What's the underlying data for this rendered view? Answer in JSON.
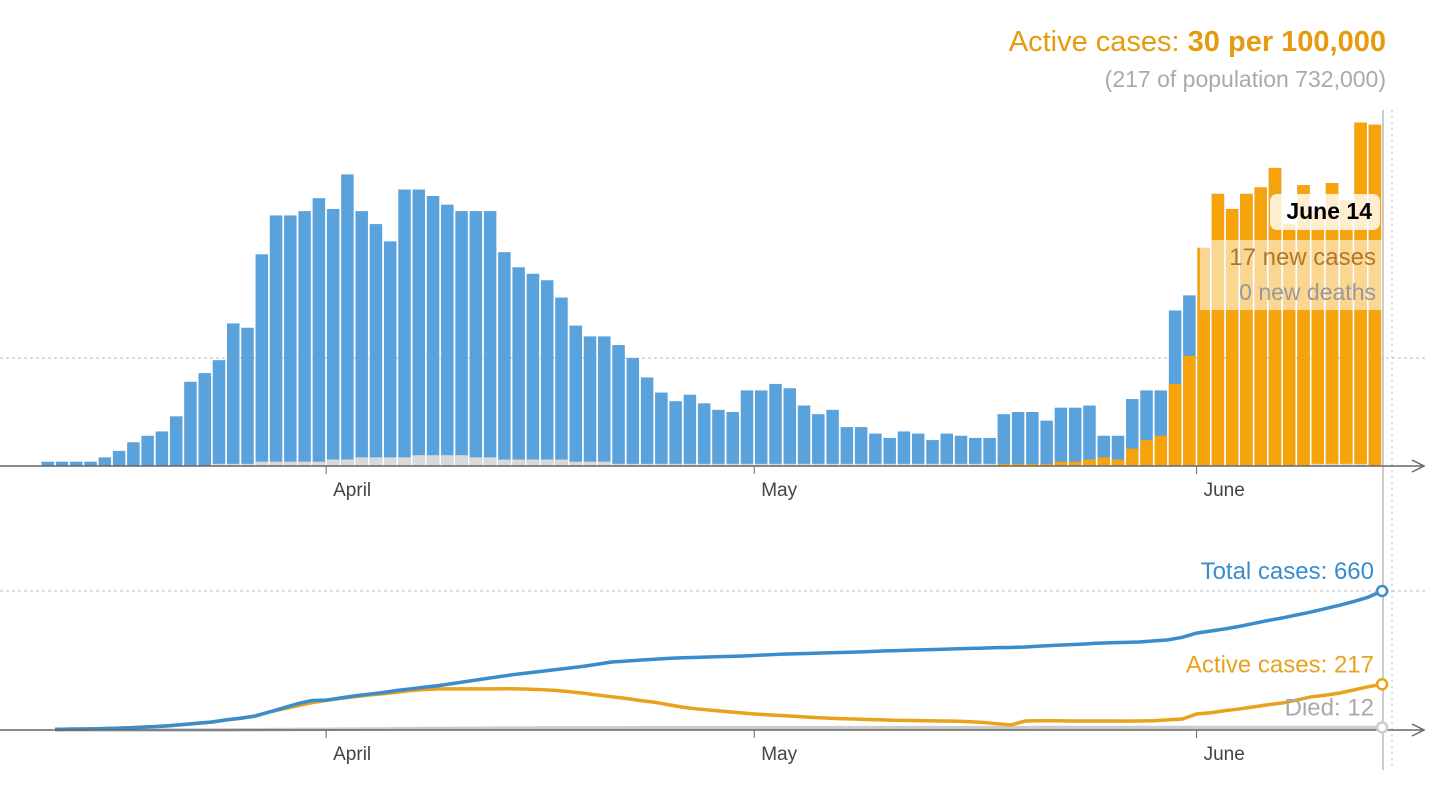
{
  "chart_data": [
    {
      "type": "bar",
      "title": "Active cases:",
      "title_value": "30 per 100,000",
      "subtitle": "(217 of population 732,000)",
      "tooltip": {
        "date": "June 14",
        "cases": "17 new cases",
        "deaths": "0 new deaths"
      },
      "categories": [
        null,
        null,
        null,
        null,
        null,
        null,
        null,
        null,
        null,
        null,
        null,
        null,
        null,
        null,
        null,
        null,
        null,
        null,
        null,
        "April",
        null,
        null,
        null,
        null,
        null,
        null,
        null,
        null,
        null,
        null,
        null,
        null,
        null,
        null,
        null,
        null,
        null,
        null,
        null,
        null,
        null,
        null,
        null,
        null,
        null,
        null,
        null,
        null,
        null,
        "May",
        null,
        null,
        null,
        null,
        null,
        null,
        null,
        null,
        null,
        null,
        null,
        null,
        null,
        null,
        null,
        null,
        null,
        null,
        null,
        null,
        null,
        null,
        null,
        null,
        null,
        null,
        null,
        null,
        null,
        null,
        "June",
        null,
        null,
        null,
        null,
        null,
        null,
        null,
        null,
        null,
        null,
        null,
        null,
        null
      ],
      "series": [
        {
          "name": "new cases",
          "color": "#5aa2dc",
          "values": [
            0.2,
            0.2,
            0.2,
            0.2,
            0.4,
            0.7,
            1.1,
            1.4,
            1.6,
            2.3,
            3.9,
            4.3,
            4.9,
            6.6,
            6.4,
            9.8,
            11.6,
            11.6,
            11.8,
            12.4,
            11.9,
            13.5,
            11.8,
            11.2,
            10.4,
            12.8,
            12.8,
            12.5,
            12.1,
            11.8,
            11.8,
            11.8,
            9.9,
            9.2,
            8.9,
            8.6,
            7.8,
            6.5,
            6.0,
            6.0,
            5.6,
            5.0,
            4.1,
            3.4,
            3.0,
            3.3,
            2.9,
            2.6,
            2.5,
            3.5,
            3.5,
            3.8,
            3.6,
            2.8,
            2.4,
            2.6,
            1.8,
            1.8,
            1.5,
            1.3,
            1.6,
            1.5,
            1.2,
            1.5,
            1.4,
            1.3,
            1.3,
            2.4,
            2.5,
            2.5,
            2.1,
            2.7,
            2.7,
            2.8,
            1.4,
            1.4,
            3.1,
            3.5,
            3.5,
            7.2,
            7.9,
            10.1,
            12.6,
            11.9,
            12.6,
            12.9,
            13.8,
            11.2,
            13.0,
            11.8,
            13.1,
            12.3,
            15.9,
            15.8
          ]
        },
        {
          "name": "active",
          "color": "#f7a40c",
          "values": [
            0,
            0,
            0,
            0,
            0,
            0,
            0,
            0,
            0,
            0,
            0,
            0,
            0,
            0,
            0,
            0,
            0,
            0,
            0,
            0,
            0,
            0,
            0,
            0,
            0,
            0,
            0,
            0,
            0,
            0,
            0,
            0,
            0,
            0,
            0,
            0,
            0,
            0,
            0,
            0,
            0,
            0,
            0,
            0,
            0,
            0,
            0,
            0,
            0,
            0,
            0,
            0,
            0,
            0,
            0,
            0,
            0,
            0,
            0,
            0,
            0,
            0,
            0,
            0,
            0,
            0,
            0,
            0.1,
            0.1,
            0.1,
            0.1,
            0.2,
            0.2,
            0.3,
            0.4,
            0.3,
            0.8,
            1.2,
            1.4,
            3.8,
            5.1,
            10.1,
            12.6,
            11.9,
            12.6,
            12.9,
            13.8,
            11.2,
            13.0,
            11.8,
            13.1,
            12.3,
            15.9,
            15.8
          ]
        },
        {
          "name": "deaths",
          "color": "#d9d9d9",
          "values": [
            0,
            0,
            0,
            0,
            0,
            0,
            0,
            0,
            0,
            0,
            0,
            0,
            0.1,
            0.1,
            0.1,
            0.2,
            0.2,
            0.2,
            0.2,
            0.2,
            0.3,
            0.3,
            0.4,
            0.4,
            0.4,
            0.4,
            0.5,
            0.5,
            0.5,
            0.5,
            0.4,
            0.4,
            0.3,
            0.3,
            0.3,
            0.3,
            0.3,
            0.2,
            0.2,
            0.2,
            0.1,
            0.1,
            0.1,
            0.1,
            0.1,
            0.1,
            0.1,
            0.1,
            0.1,
            0.1,
            0.1,
            0.1,
            0.1,
            0.1,
            0.1,
            0.1,
            0.1,
            0.1,
            0.1,
            0.1,
            0.1,
            0.1,
            0.1,
            0.1,
            0.1,
            0.1,
            0.1,
            0,
            0,
            0,
            0,
            0,
            0,
            0,
            0,
            0,
            0,
            0,
            0,
            0,
            0,
            0,
            0,
            0,
            0,
            0,
            0,
            0,
            0,
            0.1,
            0.1,
            0.1,
            0.1,
            0
          ]
        }
      ],
      "ylim": [
        0,
        16.5
      ],
      "yticks": [
        5
      ],
      "grid": true
    },
    {
      "type": "line",
      "categories": [
        null,
        null,
        null,
        null,
        null,
        null,
        null,
        null,
        null,
        null,
        null,
        null,
        null,
        null,
        null,
        null,
        null,
        null,
        null,
        "April",
        null,
        null,
        null,
        null,
        null,
        null,
        null,
        null,
        null,
        null,
        null,
        null,
        null,
        null,
        null,
        null,
        null,
        null,
        null,
        null,
        null,
        null,
        null,
        null,
        null,
        null,
        null,
        null,
        null,
        "May",
        null,
        null,
        null,
        null,
        null,
        null,
        null,
        null,
        null,
        null,
        null,
        null,
        null,
        null,
        null,
        null,
        null,
        null,
        null,
        null,
        null,
        null,
        null,
        null,
        null,
        null,
        null,
        null,
        null,
        null,
        "June",
        null,
        null,
        null,
        null,
        null,
        null,
        null,
        null,
        null,
        null,
        null,
        null,
        null
      ],
      "series": [
        {
          "name": "Total cases",
          "label": "Total cases: 660",
          "color": "#3a8dcc",
          "values": [
            3,
            4,
            5,
            6,
            8,
            10,
            13,
            16,
            20,
            26,
            32,
            38,
            48,
            56,
            66,
            85,
            105,
            125,
            140,
            142,
            152,
            162,
            170,
            178,
            188,
            196,
            204,
            212,
            222,
            232,
            242,
            252,
            262,
            270,
            278,
            286,
            294,
            302,
            312,
            323,
            327,
            332,
            336,
            340,
            343,
            345,
            347,
            349,
            351,
            354,
            357,
            360,
            362,
            364,
            366,
            368,
            370,
            372,
            375,
            377,
            379,
            381,
            383,
            385,
            387,
            389,
            391,
            392,
            394,
            398,
            402,
            405,
            408,
            412,
            414,
            416,
            418,
            423,
            428,
            440,
            460,
            470,
            480,
            492,
            506,
            520,
            532,
            546,
            560,
            576,
            592,
            610,
            630,
            660
          ]
        },
        {
          "name": "Active cases",
          "label": "Active cases: 217",
          "color": "#e8a21c",
          "values": [
            3,
            4,
            5,
            6,
            8,
            10,
            13,
            16,
            20,
            26,
            32,
            38,
            48,
            56,
            66,
            85,
            100,
            115,
            130,
            140,
            150,
            158,
            166,
            172,
            180,
            188,
            192,
            195,
            195,
            195,
            195,
            195,
            196,
            194,
            192,
            188,
            182,
            175,
            166,
            158,
            150,
            140,
            132,
            120,
            108,
            100,
            94,
            88,
            82,
            76,
            72,
            68,
            64,
            60,
            57,
            54,
            52,
            50,
            48,
            46,
            45,
            44,
            43,
            42,
            40,
            36,
            30,
            24,
            43,
            44,
            44,
            43,
            43,
            43,
            43,
            42,
            43,
            44,
            48,
            52,
            76,
            82,
            92,
            100,
            110,
            120,
            128,
            142,
            157,
            165,
            175,
            190,
            205,
            217
          ]
        },
        {
          "name": "Died",
          "label": "Died: 12",
          "color": "#cccccc",
          "values": [
            0,
            0,
            0,
            0,
            0,
            0,
            0,
            0,
            0,
            0,
            0,
            0,
            0,
            1,
            1,
            2,
            2,
            3,
            3,
            3,
            4,
            4,
            5,
            5,
            6,
            6,
            7,
            7,
            8,
            8,
            8,
            9,
            9,
            9,
            10,
            10,
            10,
            10,
            10,
            10,
            10,
            11,
            11,
            11,
            11,
            11,
            11,
            11,
            11,
            11,
            11,
            11,
            11,
            11,
            11,
            11,
            11,
            11,
            11,
            11,
            11,
            11,
            11,
            11,
            11,
            11,
            11,
            11,
            11,
            12,
            12,
            12,
            12,
            12,
            12,
            12,
            12,
            12,
            12,
            12,
            12,
            12,
            12,
            12,
            12,
            12,
            12,
            12,
            12,
            12,
            12,
            12,
            12,
            12
          ]
        }
      ],
      "ylim": [
        0,
        660
      ],
      "yticks": [
        660
      ],
      "grid": true
    }
  ]
}
